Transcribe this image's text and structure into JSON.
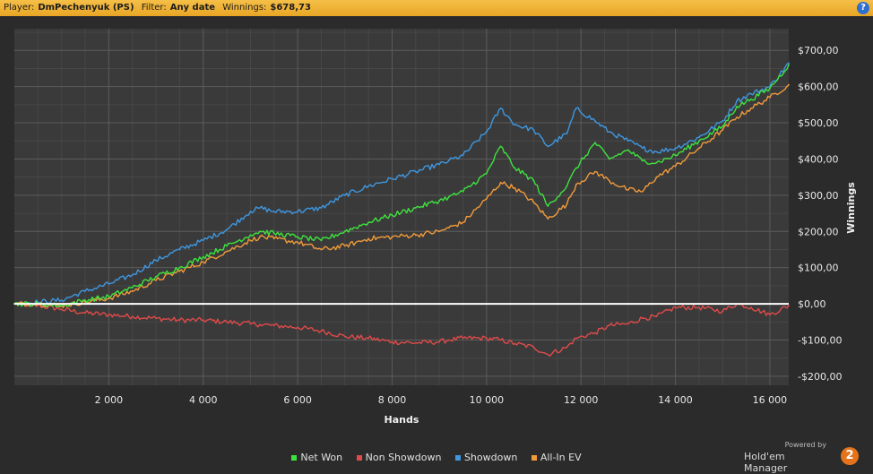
{
  "header": {
    "player_label": "Player:",
    "player_value": "DmPechenyuk (PS)",
    "filter_label": "Filter:",
    "filter_value": "Any date",
    "winnings_label": "Winnings:",
    "winnings_value": "$678,73",
    "help_glyph": "?",
    "help_icon": "help-icon"
  },
  "brand": {
    "powered_by": "Powered by",
    "name": "Hold'em Manager",
    "badge": "2"
  },
  "colors": {
    "net_won": "#3ee23e",
    "non_showdown": "#e04a4a",
    "showdown": "#3f97e0",
    "all_in_ev": "#f09a3a"
  },
  "chart_data": {
    "type": "line",
    "title": "",
    "xlabel": "Hands",
    "ylabel": "Winnings",
    "xlim": [
      0,
      16400
    ],
    "ylim": [
      -225,
      760
    ],
    "x_ticks": [
      2000,
      4000,
      6000,
      8000,
      10000,
      12000,
      14000,
      16000
    ],
    "x_tick_labels": [
      "2 000",
      "4 000",
      "6 000",
      "8 000",
      "10 000",
      "12 000",
      "14 000",
      "16 000"
    ],
    "y_ticks": [
      -200,
      -100,
      0,
      100,
      200,
      300,
      400,
      500,
      600,
      700
    ],
    "y_tick_labels": [
      "-$200,00",
      "-$100,00",
      "$0,00",
      "$100,00",
      "$200,00",
      "$300,00",
      "$400,00",
      "$500,00",
      "$600,00",
      "$700,00"
    ],
    "grid": true,
    "legend_position": "bottom",
    "x": [
      0,
      500,
      1000,
      1500,
      2000,
      2500,
      3000,
      3500,
      4000,
      4500,
      5000,
      5200,
      5500,
      6000,
      6500,
      7000,
      7500,
      8000,
      8500,
      9000,
      9200,
      9500,
      10000,
      10300,
      10600,
      11000,
      11300,
      11700,
      11900,
      12300,
      12600,
      13000,
      13300,
      13600,
      14000,
      14500,
      15000,
      15300,
      15600,
      16000,
      16400
    ],
    "series": [
      {
        "name": "Net Won",
        "color": "#3ee23e",
        "values": [
          0,
          0,
          -5,
          10,
          20,
          45,
          75,
          100,
          130,
          160,
          190,
          200,
          195,
          185,
          175,
          200,
          225,
          245,
          265,
          285,
          295,
          310,
          360,
          435,
          375,
          340,
          270,
          325,
          375,
          445,
          400,
          425,
          395,
          390,
          410,
          450,
          490,
          545,
          565,
          595,
          660
        ]
      },
      {
        "name": "Non Showdown",
        "color": "#e04a4a",
        "values": [
          0,
          -5,
          -15,
          -25,
          -30,
          -35,
          -40,
          -45,
          -45,
          -50,
          -55,
          -57,
          -60,
          -65,
          -75,
          -90,
          -95,
          -105,
          -108,
          -105,
          -100,
          -95,
          -95,
          -100,
          -110,
          -120,
          -140,
          -120,
          -95,
          -80,
          -60,
          -55,
          -40,
          -35,
          -10,
          -10,
          -20,
          0,
          -10,
          -30,
          -5
        ]
      },
      {
        "name": "Showdown",
        "color": "#3f97e0",
        "values": [
          0,
          5,
          10,
          35,
          55,
          80,
          120,
          150,
          175,
          205,
          255,
          265,
          255,
          255,
          265,
          300,
          325,
          345,
          365,
          385,
          395,
          410,
          475,
          540,
          495,
          480,
          435,
          470,
          540,
          505,
          475,
          450,
          430,
          420,
          430,
          460,
          505,
          560,
          580,
          600,
          665
        ]
      },
      {
        "name": "All-In EV",
        "color": "#f09a3a",
        "values": [
          0,
          0,
          -5,
          5,
          15,
          35,
          65,
          90,
          115,
          145,
          175,
          185,
          180,
          170,
          150,
          160,
          180,
          185,
          190,
          200,
          210,
          225,
          290,
          335,
          320,
          280,
          235,
          275,
          330,
          365,
          340,
          315,
          310,
          350,
          380,
          430,
          480,
          515,
          540,
          570,
          605
        ]
      }
    ]
  }
}
